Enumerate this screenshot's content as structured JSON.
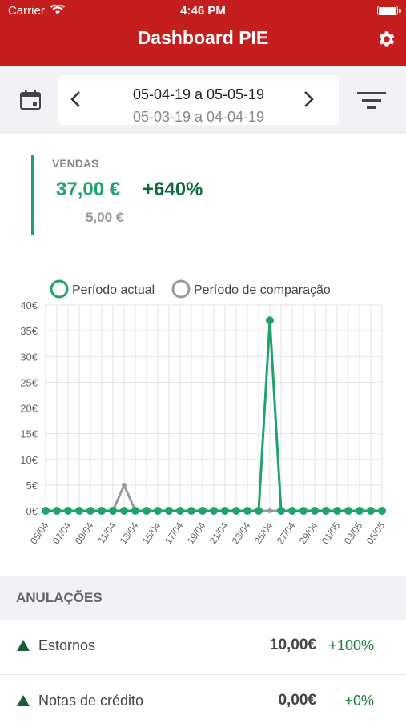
{
  "status_bar": {
    "carrier": "Carrier",
    "time": "4:46 PM"
  },
  "header": {
    "title": "Dashboard PIE"
  },
  "date_range": {
    "current": "05-04-19 a 05-05-19",
    "comparison": "05-03-19 a 04-04-19"
  },
  "kpi": {
    "label": "VENDAS",
    "value": "37,00 €",
    "change": "+640%",
    "previous": "5,00 €"
  },
  "colors": {
    "brand": "#c41e1e",
    "current": "#1fa36a",
    "comparison": "#9a9a9a",
    "positive": "#1e7a3e"
  },
  "legend": {
    "current": "Período actual",
    "comparison": "Período de comparação"
  },
  "chart_data": {
    "type": "line",
    "ylim": [
      0,
      40
    ],
    "y_ticks": [
      "0€",
      "5€",
      "10€",
      "15€",
      "20€",
      "25€",
      "30€",
      "35€",
      "40€"
    ],
    "x_tick_labels": [
      "05/04",
      "07/04",
      "09/04",
      "11/04",
      "13/04",
      "15/04",
      "17/04",
      "19/04",
      "21/04",
      "23/04",
      "25/04",
      "27/04",
      "29/04",
      "01/05",
      "03/05",
      "05/05"
    ],
    "series": [
      {
        "name": "Período actual",
        "values": [
          0,
          0,
          0,
          0,
          0,
          0,
          0,
          0,
          0,
          0,
          0,
          0,
          0,
          0,
          0,
          0,
          0,
          0,
          0,
          0,
          37,
          0,
          0,
          0,
          0,
          0,
          0,
          0,
          0,
          0,
          0
        ]
      },
      {
        "name": "Período de comparação",
        "values": [
          0,
          0,
          0,
          0,
          0,
          0,
          0,
          5,
          0,
          0,
          0,
          0,
          0,
          0,
          0,
          0,
          0,
          0,
          0,
          0,
          0,
          0,
          0,
          0,
          0,
          0,
          0,
          0,
          0,
          0,
          0
        ]
      }
    ],
    "grid": true
  },
  "annulments": {
    "title": "ANULAÇÕES",
    "rows": [
      {
        "label": "Estornos",
        "amount": "10,00€",
        "change": "+100%"
      },
      {
        "label": "Notas de crédito",
        "amount": "0,00€",
        "change": "+0%"
      }
    ]
  }
}
